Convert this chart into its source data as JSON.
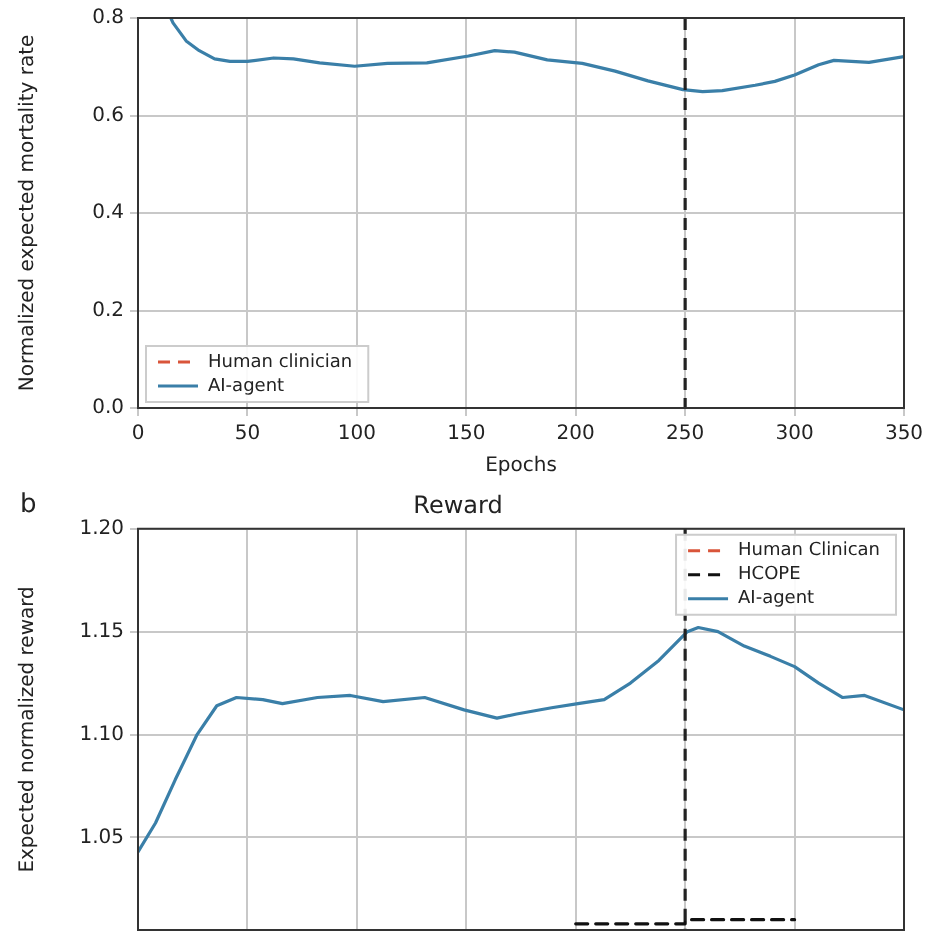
{
  "chart_data": [
    {
      "type": "line",
      "xlabel": "Epochs",
      "ylabel": "Normalized expected mortality rate",
      "xlim": [
        0,
        350
      ],
      "ylim": [
        0,
        0.8
      ],
      "xticks": [
        0,
        50,
        100,
        150,
        200,
        250,
        300,
        350
      ],
      "yticks": [
        {
          "value": 0,
          "label": "0.0"
        },
        {
          "value": 0.2,
          "label": "0.2"
        },
        {
          "value": 0.4,
          "label": "0.4"
        },
        {
          "value": 0.6,
          "label": "0.6"
        },
        {
          "value": 0.8,
          "label": "0.8"
        }
      ],
      "grid": true,
      "legend": "bottom left",
      "marker": "none",
      "ref_lines": [
        {
          "axis": "x",
          "value": 250,
          "color": "#222222",
          "line_style": "dashed"
        }
      ],
      "series": [
        {
          "name": "Human clinician",
          "color": "#d9553a",
          "line_style": "dashed"
        },
        {
          "name": "AI-agent",
          "color": "#3a7fa8",
          "line_style": "solid",
          "x": [
            15,
            16,
            22,
            28,
            35,
            42,
            50,
            62,
            71,
            83,
            99,
            114,
            132,
            151,
            163,
            172,
            187,
            203,
            218,
            233,
            249,
            258,
            267,
            282,
            291,
            300,
            311,
            318,
            334,
            350
          ],
          "values": [
            0.8,
            0.79,
            0.753,
            0.733,
            0.716,
            0.711,
            0.711,
            0.718,
            0.716,
            0.708,
            0.701,
            0.707,
            0.708,
            0.722,
            0.733,
            0.73,
            0.714,
            0.707,
            0.691,
            0.671,
            0.653,
            0.649,
            0.651,
            0.662,
            0.67,
            0.683,
            0.704,
            0.713,
            0.709,
            0.721
          ]
        }
      ]
    },
    {
      "type": "line",
      "title": "Reward",
      "ylabel": "Expected normalized reward",
      "annotations": [
        "b"
      ],
      "xlim": [
        0,
        350
      ],
      "ylim": [
        1.005,
        1.2
      ],
      "xticks": [
        0,
        50,
        100,
        150,
        200,
        250,
        300,
        350
      ],
      "yticks": [
        {
          "value": 1.05,
          "label": "1.05"
        },
        {
          "value": 1.1,
          "label": "1.10"
        },
        {
          "value": 1.15,
          "label": "1.15"
        },
        {
          "value": 1.2,
          "label": "1.20"
        }
      ],
      "tick_labels": "y",
      "grid": true,
      "legend": "top right",
      "marker": "none",
      "ref_lines": [
        {
          "axis": "x",
          "value": 250,
          "color": "#222222",
          "line_style": "dashed"
        }
      ],
      "series": [
        {
          "name": "Human Clinican",
          "color": "#d9553a",
          "line_style": "dashed"
        },
        {
          "name": "HCOPE",
          "color": "#111111",
          "line_style": "dashed",
          "x": [
            200,
            250,
            250,
            300
          ],
          "values": [
            1.008,
            1.008,
            1.01,
            1.01
          ]
        },
        {
          "name": "AI-agent",
          "color": "#3a7fa8",
          "line_style": "solid",
          "x": [
            0,
            8,
            17,
            27,
            36,
            45,
            57,
            66,
            82,
            97,
            112,
            131,
            149,
            164,
            173,
            189,
            201,
            213,
            225,
            238,
            251,
            256,
            265,
            277,
            289,
            300,
            311,
            322,
            332,
            350
          ],
          "values": [
            1.043,
            1.057,
            1.078,
            1.1,
            1.114,
            1.118,
            1.117,
            1.115,
            1.118,
            1.119,
            1.116,
            1.118,
            1.112,
            1.108,
            1.11,
            1.113,
            1.115,
            1.117,
            1.125,
            1.136,
            1.15,
            1.152,
            1.15,
            1.143,
            1.138,
            1.133,
            1.125,
            1.118,
            1.119,
            1.112
          ]
        }
      ]
    }
  ]
}
